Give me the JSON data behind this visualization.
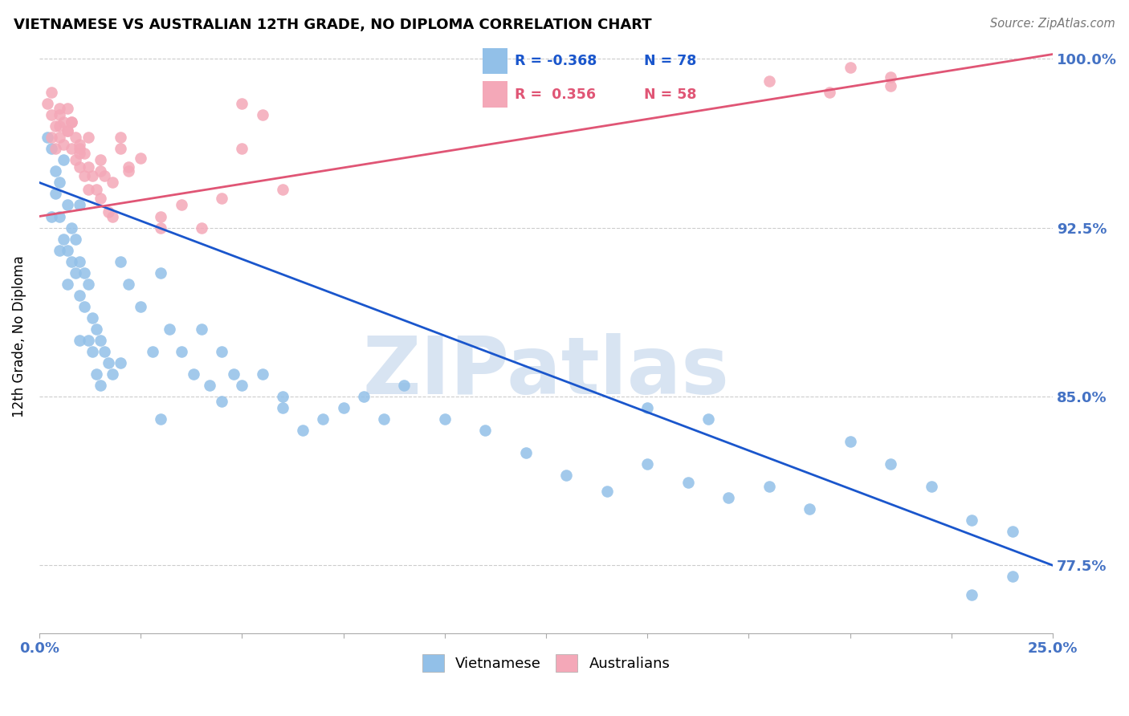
{
  "title": "VIETNAMESE VS AUSTRALIAN 12TH GRADE, NO DIPLOMA CORRELATION CHART",
  "source": "Source: ZipAtlas.com",
  "ylabel": "12th Grade, No Diploma",
  "x_min": 0.0,
  "x_max": 0.25,
  "y_min": 0.745,
  "y_max": 1.008,
  "y_ticks": [
    0.775,
    0.85,
    0.925,
    1.0
  ],
  "y_tick_labels": [
    "77.5%",
    "85.0%",
    "92.5%",
    "100.0%"
  ],
  "color_blue": "#92C0E8",
  "color_pink": "#F4A8B8",
  "color_line_blue": "#1A56CC",
  "color_line_pink": "#E05575",
  "watermark": "ZIPatlas",
  "watermark_color": "#D8E4F2",
  "blue_line_x0": 0.0,
  "blue_line_y0": 0.945,
  "blue_line_x1": 0.25,
  "blue_line_y1": 0.775,
  "pink_line_x0": 0.0,
  "pink_line_y0": 0.93,
  "pink_line_x1": 0.25,
  "pink_line_y1": 1.002,
  "blue_x": [
    0.002,
    0.003,
    0.004,
    0.004,
    0.005,
    0.005,
    0.006,
    0.006,
    0.007,
    0.007,
    0.008,
    0.008,
    0.009,
    0.009,
    0.01,
    0.01,
    0.01,
    0.011,
    0.011,
    0.012,
    0.012,
    0.013,
    0.013,
    0.014,
    0.014,
    0.015,
    0.016,
    0.017,
    0.018,
    0.02,
    0.022,
    0.025,
    0.028,
    0.03,
    0.032,
    0.035,
    0.038,
    0.04,
    0.042,
    0.045,
    0.048,
    0.05,
    0.055,
    0.06,
    0.065,
    0.07,
    0.075,
    0.08,
    0.085,
    0.09,
    0.1,
    0.11,
    0.12,
    0.13,
    0.14,
    0.15,
    0.16,
    0.17,
    0.18,
    0.19,
    0.2,
    0.21,
    0.22,
    0.23,
    0.24,
    0.003,
    0.005,
    0.007,
    0.01,
    0.015,
    0.02,
    0.03,
    0.045,
    0.06,
    0.15,
    0.165,
    0.23,
    0.24
  ],
  "blue_y": [
    0.965,
    0.96,
    0.95,
    0.94,
    0.945,
    0.93,
    0.955,
    0.92,
    0.935,
    0.915,
    0.925,
    0.91,
    0.92,
    0.905,
    0.935,
    0.91,
    0.895,
    0.905,
    0.89,
    0.9,
    0.875,
    0.885,
    0.87,
    0.88,
    0.86,
    0.875,
    0.87,
    0.865,
    0.86,
    0.91,
    0.9,
    0.89,
    0.87,
    0.905,
    0.88,
    0.87,
    0.86,
    0.88,
    0.855,
    0.87,
    0.86,
    0.855,
    0.86,
    0.845,
    0.835,
    0.84,
    0.845,
    0.85,
    0.84,
    0.855,
    0.84,
    0.835,
    0.825,
    0.815,
    0.808,
    0.82,
    0.812,
    0.805,
    0.81,
    0.8,
    0.83,
    0.82,
    0.81,
    0.795,
    0.79,
    0.93,
    0.915,
    0.9,
    0.875,
    0.855,
    0.865,
    0.84,
    0.848,
    0.85,
    0.845,
    0.84,
    0.762,
    0.77
  ],
  "pink_x": [
    0.002,
    0.003,
    0.003,
    0.004,
    0.004,
    0.005,
    0.005,
    0.006,
    0.006,
    0.007,
    0.007,
    0.008,
    0.008,
    0.009,
    0.009,
    0.01,
    0.01,
    0.011,
    0.011,
    0.012,
    0.012,
    0.013,
    0.014,
    0.015,
    0.016,
    0.017,
    0.018,
    0.02,
    0.022,
    0.025,
    0.03,
    0.035,
    0.04,
    0.045,
    0.05,
    0.06,
    0.2,
    0.21,
    0.005,
    0.008,
    0.01,
    0.012,
    0.015,
    0.018,
    0.022,
    0.03,
    0.05,
    0.055,
    0.003,
    0.005,
    0.007,
    0.01,
    0.015,
    0.02,
    0.18,
    0.195,
    0.21
  ],
  "pink_y": [
    0.98,
    0.975,
    0.965,
    0.97,
    0.96,
    0.975,
    0.965,
    0.972,
    0.962,
    0.978,
    0.968,
    0.972,
    0.96,
    0.965,
    0.955,
    0.962,
    0.952,
    0.958,
    0.948,
    0.952,
    0.942,
    0.948,
    0.942,
    0.938,
    0.948,
    0.932,
    0.93,
    0.96,
    0.952,
    0.956,
    0.925,
    0.935,
    0.925,
    0.938,
    0.96,
    0.942,
    0.996,
    0.988,
    0.97,
    0.972,
    0.958,
    0.965,
    0.955,
    0.945,
    0.95,
    0.93,
    0.98,
    0.975,
    0.985,
    0.978,
    0.968,
    0.96,
    0.95,
    0.965,
    0.99,
    0.985,
    0.992
  ]
}
